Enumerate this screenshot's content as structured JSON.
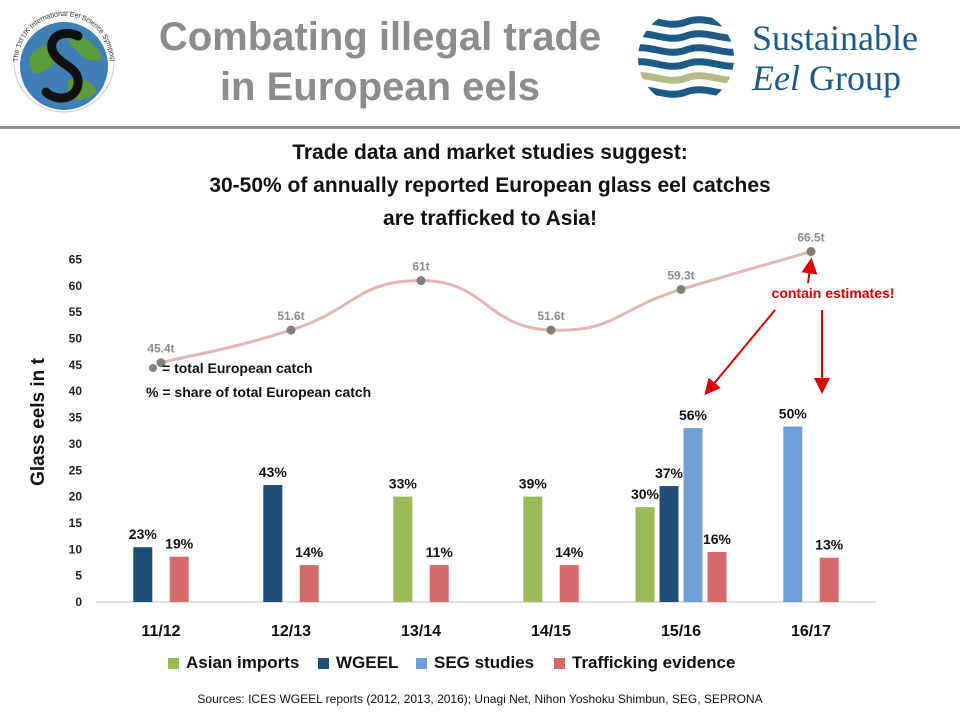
{
  "header": {
    "title_line1": "Combating illegal trade",
    "title_line2": "in European eels",
    "symposium_logo_text": "The 1st UK International Eel Science Symposium",
    "seg_name_line1": "Sustainable",
    "seg_name_line2a": "Eel",
    "seg_name_line2b": " Group"
  },
  "headline": {
    "line1": "Trade data and market studies suggest:",
    "line2": "30-50% of annually reported European glass eel catches",
    "line3": "are trafficked to Asia!"
  },
  "sources": "Sources: ICES WGEEL reports (2012, 2013, 2016); Unagi Net, Nihon Yoshoku Shimbun, SEG, SEPRONA",
  "chart_data": {
    "type": "bar",
    "ylabel": "Glass eels in t",
    "ylim": [
      0,
      65
    ],
    "yticks": [
      "0",
      "5",
      "10",
      "15",
      "20",
      "25",
      "30",
      "35",
      "40",
      "45",
      "50",
      "55",
      "60",
      "65"
    ],
    "categories": [
      "11/12",
      "12/13",
      "13/14",
      "14/15",
      "15/16",
      "16/17"
    ],
    "series": [
      {
        "name": "Asian imports",
        "color": "#9bbb59",
        "values": [
          null,
          null,
          20,
          20,
          18,
          null
        ],
        "labels": [
          null,
          null,
          "33%",
          "39%",
          "30%",
          null
        ]
      },
      {
        "name": "WGEEL",
        "color": "#1f4e79",
        "values": [
          10.4,
          22.2,
          null,
          null,
          22,
          null
        ],
        "labels": [
          "23%",
          "43%",
          null,
          null,
          "37%",
          null
        ]
      },
      {
        "name": "SEG studies",
        "color": "#6f9fd8",
        "values": [
          null,
          null,
          null,
          null,
          33,
          33.3
        ],
        "labels": [
          null,
          null,
          null,
          null,
          "56%",
          "50%"
        ]
      },
      {
        "name": "Trafficking evidence",
        "color": "#d46a6a",
        "values": [
          8.6,
          7,
          7,
          7,
          9.5,
          8.4
        ],
        "labels": [
          "19%",
          "14%",
          "11%",
          "14%",
          "16%",
          "13%"
        ]
      }
    ],
    "total_catch": {
      "color": "#e3b5b5",
      "values": [
        45.4,
        51.6,
        61,
        51.6,
        59.3,
        66.5
      ],
      "labels": [
        "45.4t",
        "51.6t",
        "61t",
        "51.6t",
        "59.3t",
        "66.5t"
      ]
    },
    "legend_notes": {
      "dot_note": "= total European catch",
      "pct_note": "% = share of total European catch"
    },
    "annotation": {
      "text": "contain estimates!",
      "color": "#e00000"
    },
    "legend_position": "bottom"
  }
}
